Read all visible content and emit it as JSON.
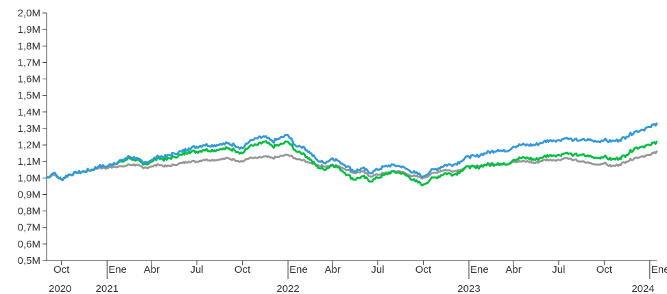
{
  "chart_data": {
    "type": "line",
    "title": "",
    "xlabel": "",
    "ylabel": "",
    "grid": false,
    "x_range": [
      "2020-09-01",
      "2024-01-15"
    ],
    "ylim": [
      0.5,
      2.0
    ],
    "y_ticks": [
      {
        "value": 0.5,
        "label": "0,5M"
      },
      {
        "value": 0.6,
        "label": "0,6M"
      },
      {
        "value": 0.7,
        "label": "0,7M"
      },
      {
        "value": 0.8,
        "label": "0,8M"
      },
      {
        "value": 0.9,
        "label": "0,9M"
      },
      {
        "value": 1.0,
        "label": "1,0M"
      },
      {
        "value": 1.1,
        "label": "1,1M"
      },
      {
        "value": 1.2,
        "label": "1,2M"
      },
      {
        "value": 1.3,
        "label": "1,3M"
      },
      {
        "value": 1.4,
        "label": "1,4M"
      },
      {
        "value": 1.5,
        "label": "1,5M"
      },
      {
        "value": 1.6,
        "label": "1,6M"
      },
      {
        "value": 1.7,
        "label": "1,7M"
      },
      {
        "value": 1.8,
        "label": "1,8M"
      },
      {
        "value": 1.9,
        "label": "1,9M"
      },
      {
        "value": 2.0,
        "label": "2,0M"
      }
    ],
    "x_ticks": [
      {
        "date": "2020-10-01",
        "label": "Oct",
        "year": "2020"
      },
      {
        "date": "2021-01-01",
        "label": "Ene",
        "year": "2021"
      },
      {
        "date": "2021-04-01",
        "label": "Abr"
      },
      {
        "date": "2021-07-01",
        "label": "Jul"
      },
      {
        "date": "2021-10-01",
        "label": "Oct"
      },
      {
        "date": "2022-01-01",
        "label": "Ene",
        "year": "2022"
      },
      {
        "date": "2022-04-01",
        "label": "Abr"
      },
      {
        "date": "2022-07-01",
        "label": "Jul"
      },
      {
        "date": "2022-10-01",
        "label": "Oct"
      },
      {
        "date": "2023-01-01",
        "label": "Ene",
        "year": "2023"
      },
      {
        "date": "2023-04-01",
        "label": "Abr"
      },
      {
        "date": "2023-07-01",
        "label": "Jul"
      },
      {
        "date": "2023-10-01",
        "label": "Oct"
      },
      {
        "date": "2024-01-01",
        "label": "Ene",
        "year": "2024"
      }
    ],
    "x": [
      "2020-09-01",
      "2020-09-15",
      "2020-10-01",
      "2020-10-15",
      "2020-11-01",
      "2020-11-15",
      "2020-12-01",
      "2020-12-15",
      "2021-01-01",
      "2021-01-15",
      "2021-02-01",
      "2021-02-15",
      "2021-03-01",
      "2021-03-15",
      "2021-04-01",
      "2021-04-15",
      "2021-05-01",
      "2021-05-15",
      "2021-06-01",
      "2021-06-15",
      "2021-07-01",
      "2021-07-15",
      "2021-08-01",
      "2021-08-15",
      "2021-09-01",
      "2021-09-15",
      "2021-10-01",
      "2021-10-15",
      "2021-11-01",
      "2021-11-15",
      "2021-12-01",
      "2021-12-15",
      "2022-01-01",
      "2022-01-15",
      "2022-02-01",
      "2022-02-15",
      "2022-03-01",
      "2022-03-15",
      "2022-04-01",
      "2022-04-15",
      "2022-05-01",
      "2022-05-15",
      "2022-06-01",
      "2022-06-15",
      "2022-07-01",
      "2022-07-15",
      "2022-08-01",
      "2022-08-15",
      "2022-09-01",
      "2022-09-15",
      "2022-10-01",
      "2022-10-15",
      "2022-11-01",
      "2022-11-15",
      "2022-12-01",
      "2022-12-15",
      "2023-01-01",
      "2023-01-15",
      "2023-02-01",
      "2023-02-15",
      "2023-03-01",
      "2023-03-15",
      "2023-04-01",
      "2023-04-15",
      "2023-05-01",
      "2023-05-15",
      "2023-06-01",
      "2023-06-15",
      "2023-07-01",
      "2023-07-15",
      "2023-08-01",
      "2023-08-15",
      "2023-09-01",
      "2023-09-15",
      "2023-10-01",
      "2023-10-15",
      "2023-11-01",
      "2023-11-15",
      "2023-12-01",
      "2023-12-15",
      "2024-01-01",
      "2024-01-15"
    ],
    "series": [
      {
        "color": "#999999",
        "values": [
          1.0,
          1.02,
          0.99,
          1.02,
          1.03,
          1.04,
          1.05,
          1.06,
          1.06,
          1.07,
          1.07,
          1.08,
          1.08,
          1.06,
          1.07,
          1.08,
          1.07,
          1.08,
          1.09,
          1.1,
          1.1,
          1.11,
          1.11,
          1.11,
          1.12,
          1.11,
          1.1,
          1.12,
          1.12,
          1.13,
          1.12,
          1.13,
          1.14,
          1.12,
          1.11,
          1.09,
          1.08,
          1.07,
          1.08,
          1.07,
          1.05,
          1.03,
          1.04,
          1.01,
          1.02,
          1.03,
          1.04,
          1.04,
          1.02,
          1.01,
          1.0,
          1.02,
          1.04,
          1.05,
          1.04,
          1.05,
          1.07,
          1.07,
          1.08,
          1.09,
          1.08,
          1.08,
          1.1,
          1.1,
          1.1,
          1.09,
          1.11,
          1.11,
          1.11,
          1.12,
          1.11,
          1.1,
          1.09,
          1.08,
          1.09,
          1.07,
          1.08,
          1.1,
          1.12,
          1.13,
          1.14,
          1.16
        ]
      },
      {
        "color": "#00c040",
        "values": [
          1.0,
          1.03,
          0.99,
          1.02,
          1.03,
          1.04,
          1.05,
          1.07,
          1.07,
          1.09,
          1.1,
          1.12,
          1.11,
          1.08,
          1.1,
          1.12,
          1.11,
          1.13,
          1.14,
          1.16,
          1.16,
          1.17,
          1.17,
          1.17,
          1.18,
          1.17,
          1.15,
          1.19,
          1.2,
          1.22,
          1.19,
          1.2,
          1.22,
          1.17,
          1.15,
          1.11,
          1.07,
          1.05,
          1.08,
          1.06,
          1.02,
          0.99,
          1.01,
          0.98,
          1.0,
          1.02,
          1.04,
          1.03,
          1.01,
          0.98,
          0.96,
          0.99,
          1.01,
          1.03,
          1.02,
          1.04,
          1.07,
          1.06,
          1.08,
          1.08,
          1.09,
          1.08,
          1.11,
          1.12,
          1.12,
          1.11,
          1.13,
          1.14,
          1.14,
          1.15,
          1.14,
          1.14,
          1.13,
          1.12,
          1.13,
          1.11,
          1.12,
          1.14,
          1.18,
          1.19,
          1.2,
          1.22
        ]
      },
      {
        "color": "#3399dd",
        "values": [
          1.0,
          1.03,
          0.99,
          1.02,
          1.03,
          1.04,
          1.05,
          1.07,
          1.07,
          1.09,
          1.11,
          1.13,
          1.12,
          1.09,
          1.11,
          1.13,
          1.13,
          1.15,
          1.16,
          1.18,
          1.19,
          1.2,
          1.2,
          1.2,
          1.21,
          1.2,
          1.18,
          1.22,
          1.24,
          1.25,
          1.22,
          1.24,
          1.26,
          1.2,
          1.19,
          1.15,
          1.11,
          1.09,
          1.12,
          1.1,
          1.07,
          1.04,
          1.06,
          1.03,
          1.05,
          1.07,
          1.08,
          1.07,
          1.05,
          1.03,
          1.01,
          1.04,
          1.06,
          1.08,
          1.08,
          1.1,
          1.13,
          1.13,
          1.15,
          1.16,
          1.17,
          1.16,
          1.19,
          1.2,
          1.2,
          1.2,
          1.22,
          1.23,
          1.23,
          1.24,
          1.23,
          1.23,
          1.23,
          1.22,
          1.23,
          1.22,
          1.23,
          1.25,
          1.28,
          1.29,
          1.31,
          1.33
        ]
      }
    ]
  }
}
